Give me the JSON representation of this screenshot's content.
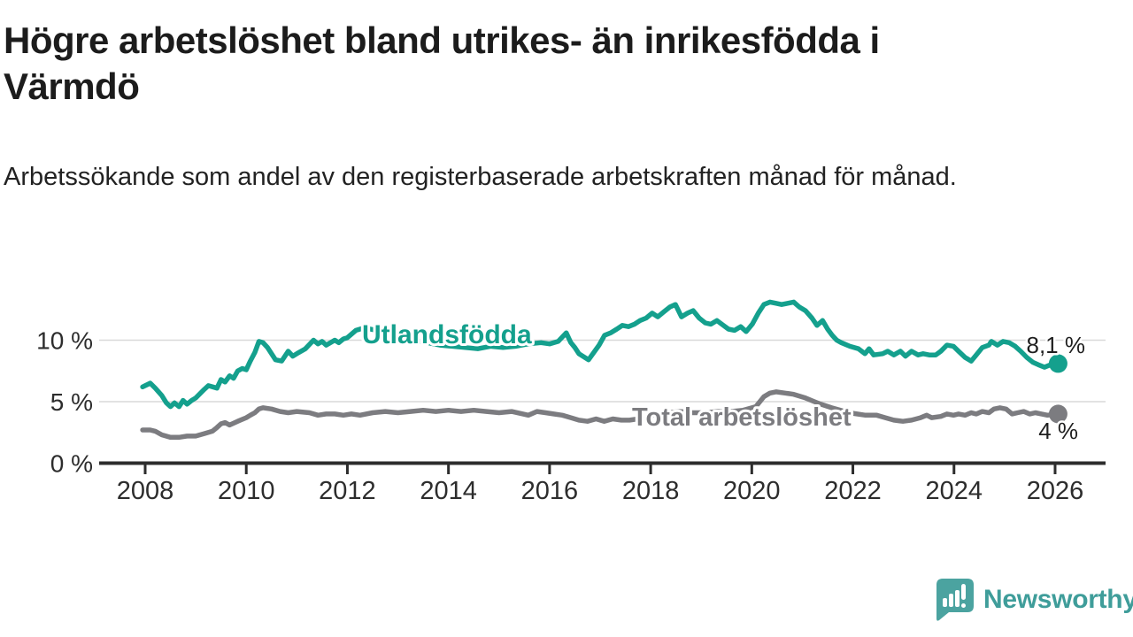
{
  "header": {
    "title": "Högre arbetslöshet bland utrikes- än inrikesfödda i Värmdö",
    "subtitle": "Arbetssökande som andel av den registerbaserade arbetskraften månad för månad."
  },
  "chart_data": {
    "type": "line",
    "title": "Högre arbetslöshet bland utrikes- än inrikesfödda i Värmdö",
    "unit": "%",
    "grid": "horizontal-only",
    "x_axis": {
      "range": [
        2007.1,
        2027.0
      ],
      "tick_years": [
        2008,
        2010,
        2012,
        2014,
        2016,
        2018,
        2020,
        2022,
        2024,
        2026
      ],
      "tick_labels": [
        "2008",
        "2010",
        "2012",
        "2014",
        "2016",
        "2018",
        "2020",
        "2022",
        "2024",
        "2026"
      ]
    },
    "y_axis": {
      "range": [
        0,
        14.4
      ],
      "ticks": [
        {
          "value": 0,
          "label": "0 %"
        },
        {
          "value": 5,
          "label": "5 %"
        },
        {
          "value": 10,
          "label": "10 %"
        }
      ]
    },
    "series": [
      {
        "id": "utlandsfodda",
        "name": "Utlandsfödda",
        "color": "#14a08d",
        "end_label": "8,1 %",
        "end_value": 8.1,
        "points": [
          [
            2007.95,
            6.2
          ],
          [
            2008.0,
            6.3
          ],
          [
            2008.1,
            6.5
          ],
          [
            2008.2,
            6.1
          ],
          [
            2008.33,
            5.5
          ],
          [
            2008.42,
            4.9
          ],
          [
            2008.5,
            4.6
          ],
          [
            2008.58,
            4.9
          ],
          [
            2008.67,
            4.6
          ],
          [
            2008.75,
            5.1
          ],
          [
            2008.83,
            4.8
          ],
          [
            2008.92,
            5.1
          ],
          [
            2009.0,
            5.3
          ],
          [
            2009.17,
            6.0
          ],
          [
            2009.25,
            6.3
          ],
          [
            2009.42,
            6.1
          ],
          [
            2009.5,
            6.8
          ],
          [
            2009.58,
            6.6
          ],
          [
            2009.67,
            7.1
          ],
          [
            2009.75,
            6.9
          ],
          [
            2009.83,
            7.5
          ],
          [
            2009.92,
            7.7
          ],
          [
            2010.0,
            7.6
          ],
          [
            2010.08,
            8.3
          ],
          [
            2010.17,
            9.0
          ],
          [
            2010.25,
            9.9
          ],
          [
            2010.33,
            9.8
          ],
          [
            2010.42,
            9.4
          ],
          [
            2010.58,
            8.4
          ],
          [
            2010.7,
            8.3
          ],
          [
            2010.83,
            9.1
          ],
          [
            2010.92,
            8.7
          ],
          [
            2011.0,
            8.9
          ],
          [
            2011.17,
            9.3
          ],
          [
            2011.33,
            10.0
          ],
          [
            2011.42,
            9.7
          ],
          [
            2011.5,
            9.9
          ],
          [
            2011.58,
            9.6
          ],
          [
            2011.75,
            10.0
          ],
          [
            2011.83,
            9.8
          ],
          [
            2011.92,
            10.1
          ],
          [
            2012.0,
            10.2
          ],
          [
            2012.17,
            10.8
          ],
          [
            2012.33,
            11.0
          ],
          [
            2012.58,
            10.8
          ],
          [
            2012.83,
            10.5
          ],
          [
            2013.08,
            10.3
          ],
          [
            2013.33,
            10.0
          ],
          [
            2013.58,
            9.8
          ],
          [
            2013.83,
            9.6
          ],
          [
            2014.08,
            9.5
          ],
          [
            2014.33,
            9.4
          ],
          [
            2014.58,
            9.3
          ],
          [
            2014.83,
            9.5
          ],
          [
            2015.08,
            9.4
          ],
          [
            2015.33,
            9.5
          ],
          [
            2015.58,
            9.7
          ],
          [
            2015.83,
            9.8
          ],
          [
            2016.0,
            9.7
          ],
          [
            2016.17,
            9.9
          ],
          [
            2016.33,
            10.6
          ],
          [
            2016.42,
            9.8
          ],
          [
            2016.5,
            9.4
          ],
          [
            2016.58,
            8.9
          ],
          [
            2016.77,
            8.4
          ],
          [
            2016.98,
            9.6
          ],
          [
            2017.09,
            10.4
          ],
          [
            2017.21,
            10.6
          ],
          [
            2017.33,
            10.9
          ],
          [
            2017.44,
            11.2
          ],
          [
            2017.56,
            11.1
          ],
          [
            2017.68,
            11.3
          ],
          [
            2017.79,
            11.6
          ],
          [
            2017.91,
            11.8
          ],
          [
            2018.03,
            12.2
          ],
          [
            2018.14,
            11.9
          ],
          [
            2018.26,
            12.3
          ],
          [
            2018.38,
            12.7
          ],
          [
            2018.49,
            12.9
          ],
          [
            2018.61,
            11.9
          ],
          [
            2018.73,
            12.2
          ],
          [
            2018.84,
            12.4
          ],
          [
            2018.96,
            11.8
          ],
          [
            2019.08,
            11.4
          ],
          [
            2019.19,
            11.3
          ],
          [
            2019.31,
            11.6
          ],
          [
            2019.44,
            11.2
          ],
          [
            2019.54,
            10.9
          ],
          [
            2019.66,
            10.8
          ],
          [
            2019.78,
            11.1
          ],
          [
            2019.89,
            10.7
          ],
          [
            2020.01,
            11.3
          ],
          [
            2020.13,
            12.2
          ],
          [
            2020.24,
            12.9
          ],
          [
            2020.36,
            13.1
          ],
          [
            2020.48,
            13.0
          ],
          [
            2020.59,
            12.9
          ],
          [
            2020.71,
            13.0
          ],
          [
            2020.83,
            13.1
          ],
          [
            2020.94,
            12.7
          ],
          [
            2021.06,
            12.4
          ],
          [
            2021.19,
            11.8
          ],
          [
            2021.29,
            11.2
          ],
          [
            2021.4,
            11.6
          ],
          [
            2021.5,
            10.9
          ],
          [
            2021.59,
            10.4
          ],
          [
            2021.68,
            10.0
          ],
          [
            2021.77,
            9.8
          ],
          [
            2021.94,
            9.5
          ],
          [
            2022.11,
            9.3
          ],
          [
            2022.24,
            8.9
          ],
          [
            2022.32,
            9.3
          ],
          [
            2022.41,
            8.8
          ],
          [
            2022.59,
            8.9
          ],
          [
            2022.69,
            9.1
          ],
          [
            2022.81,
            8.8
          ],
          [
            2022.94,
            9.1
          ],
          [
            2023.04,
            8.7
          ],
          [
            2023.16,
            9.1
          ],
          [
            2023.29,
            8.8
          ],
          [
            2023.39,
            8.9
          ],
          [
            2023.51,
            8.8
          ],
          [
            2023.64,
            8.8
          ],
          [
            2023.74,
            9.1
          ],
          [
            2023.86,
            9.6
          ],
          [
            2023.99,
            9.5
          ],
          [
            2024.09,
            9.1
          ],
          [
            2024.22,
            8.6
          ],
          [
            2024.34,
            8.3
          ],
          [
            2024.44,
            8.8
          ],
          [
            2024.56,
            9.4
          ],
          [
            2024.69,
            9.6
          ],
          [
            2024.74,
            9.9
          ],
          [
            2024.86,
            9.6
          ],
          [
            2024.97,
            9.9
          ],
          [
            2025.09,
            9.8
          ],
          [
            2025.21,
            9.5
          ],
          [
            2025.32,
            9.1
          ],
          [
            2025.44,
            8.6
          ],
          [
            2025.56,
            8.2
          ],
          [
            2025.67,
            8.0
          ],
          [
            2025.79,
            7.8
          ],
          [
            2025.91,
            8.0
          ],
          [
            2026.06,
            8.1
          ]
        ]
      },
      {
        "id": "total",
        "name": "Total arbetslöshet",
        "color": "#7c7c80",
        "end_label": "4 %",
        "end_value": 4.0,
        "points": [
          [
            2007.95,
            2.7
          ],
          [
            2008.1,
            2.7
          ],
          [
            2008.2,
            2.6
          ],
          [
            2008.33,
            2.3
          ],
          [
            2008.5,
            2.1
          ],
          [
            2008.67,
            2.1
          ],
          [
            2008.83,
            2.2
          ],
          [
            2009.0,
            2.2
          ],
          [
            2009.17,
            2.4
          ],
          [
            2009.33,
            2.6
          ],
          [
            2009.42,
            2.9
          ],
          [
            2009.5,
            3.2
          ],
          [
            2009.58,
            3.3
          ],
          [
            2009.67,
            3.1
          ],
          [
            2009.83,
            3.4
          ],
          [
            2010.0,
            3.7
          ],
          [
            2010.08,
            3.9
          ],
          [
            2010.17,
            4.1
          ],
          [
            2010.25,
            4.4
          ],
          [
            2010.33,
            4.5
          ],
          [
            2010.5,
            4.4
          ],
          [
            2010.67,
            4.2
          ],
          [
            2010.83,
            4.1
          ],
          [
            2011.0,
            4.2
          ],
          [
            2011.25,
            4.1
          ],
          [
            2011.42,
            3.9
          ],
          [
            2011.58,
            4.0
          ],
          [
            2011.75,
            4.0
          ],
          [
            2011.92,
            3.9
          ],
          [
            2012.08,
            4.0
          ],
          [
            2012.25,
            3.9
          ],
          [
            2012.5,
            4.1
          ],
          [
            2012.75,
            4.2
          ],
          [
            2013.0,
            4.1
          ],
          [
            2013.25,
            4.2
          ],
          [
            2013.5,
            4.3
          ],
          [
            2013.75,
            4.2
          ],
          [
            2014.0,
            4.3
          ],
          [
            2014.25,
            4.2
          ],
          [
            2014.5,
            4.3
          ],
          [
            2014.75,
            4.2
          ],
          [
            2015.0,
            4.1
          ],
          [
            2015.25,
            4.2
          ],
          [
            2015.58,
            3.9
          ],
          [
            2015.75,
            4.2
          ],
          [
            2015.92,
            4.1
          ],
          [
            2016.08,
            4.0
          ],
          [
            2016.25,
            3.9
          ],
          [
            2016.42,
            3.7
          ],
          [
            2016.58,
            3.5
          ],
          [
            2016.75,
            3.4
          ],
          [
            2016.92,
            3.6
          ],
          [
            2017.08,
            3.4
          ],
          [
            2017.25,
            3.6
          ],
          [
            2017.42,
            3.5
          ],
          [
            2017.58,
            3.5
          ],
          [
            2017.75,
            3.6
          ],
          [
            2017.92,
            3.6
          ],
          [
            2018.08,
            4.0
          ],
          [
            2018.33,
            4.1
          ],
          [
            2018.58,
            4.2
          ],
          [
            2018.83,
            4.1
          ],
          [
            2019.08,
            4.1
          ],
          [
            2019.33,
            4.2
          ],
          [
            2019.58,
            4.2
          ],
          [
            2019.83,
            4.3
          ],
          [
            2020.08,
            4.6
          ],
          [
            2020.24,
            5.4
          ],
          [
            2020.36,
            5.7
          ],
          [
            2020.48,
            5.8
          ],
          [
            2020.66,
            5.7
          ],
          [
            2020.83,
            5.6
          ],
          [
            2021.06,
            5.3
          ],
          [
            2021.24,
            5.0
          ],
          [
            2021.36,
            4.8
          ],
          [
            2021.58,
            4.5
          ],
          [
            2021.75,
            4.3
          ],
          [
            2021.92,
            4.1
          ],
          [
            2022.08,
            4.0
          ],
          [
            2022.25,
            3.9
          ],
          [
            2022.47,
            3.9
          ],
          [
            2022.64,
            3.7
          ],
          [
            2022.81,
            3.5
          ],
          [
            2022.99,
            3.4
          ],
          [
            2023.16,
            3.5
          ],
          [
            2023.34,
            3.7
          ],
          [
            2023.46,
            3.9
          ],
          [
            2023.56,
            3.7
          ],
          [
            2023.74,
            3.8
          ],
          [
            2023.86,
            4.0
          ],
          [
            2023.99,
            3.9
          ],
          [
            2024.09,
            4.0
          ],
          [
            2024.22,
            3.9
          ],
          [
            2024.34,
            4.1
          ],
          [
            2024.44,
            4.0
          ],
          [
            2024.56,
            4.2
          ],
          [
            2024.69,
            4.1
          ],
          [
            2024.79,
            4.4
          ],
          [
            2024.91,
            4.5
          ],
          [
            2025.03,
            4.4
          ],
          [
            2025.15,
            4.0
          ],
          [
            2025.26,
            4.1
          ],
          [
            2025.38,
            4.2
          ],
          [
            2025.5,
            4.0
          ],
          [
            2025.61,
            4.1
          ],
          [
            2025.73,
            4.0
          ],
          [
            2025.85,
            3.9
          ],
          [
            2026.06,
            4.0
          ]
        ]
      }
    ],
    "colors": {
      "grid": "#d9d9d9",
      "axis": "#2d2d2d",
      "tick_text": "#2d2d2d",
      "end_label_text": "#1f1f1f"
    }
  },
  "footer": {
    "brand": "Newsworthy",
    "logo_color": "#4ba3a0"
  }
}
